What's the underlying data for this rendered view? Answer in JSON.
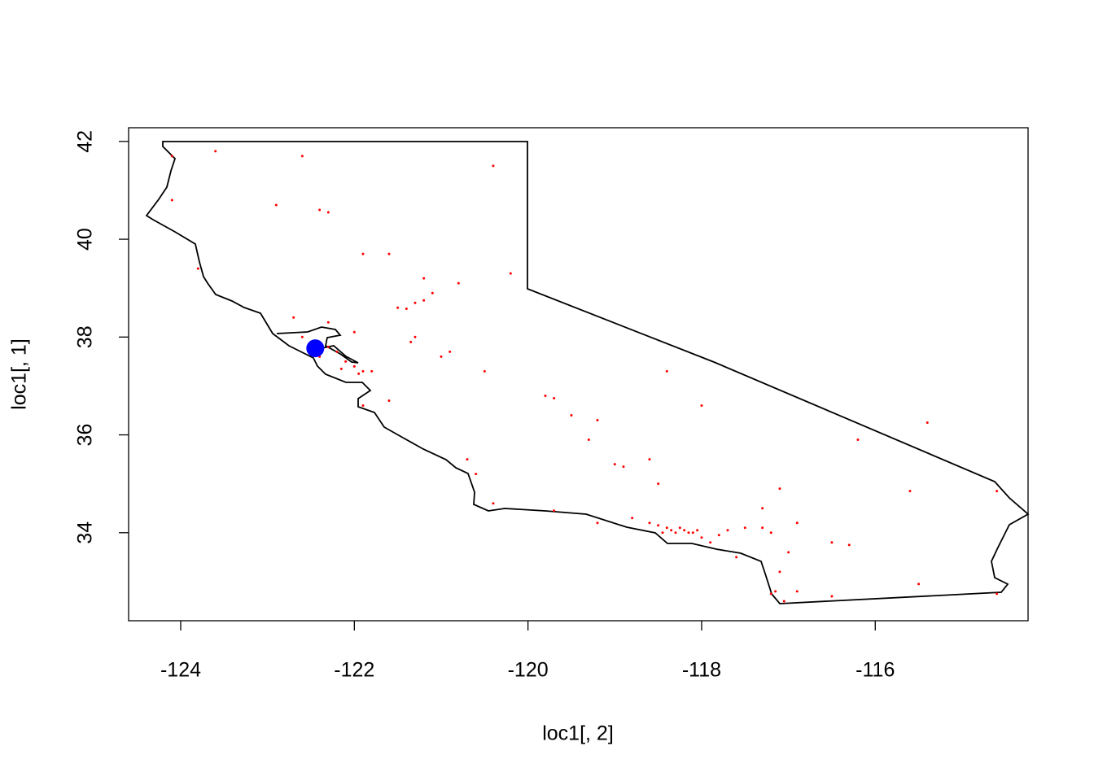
{
  "chart_data": {
    "type": "scatter",
    "xlabel": "loc1[, 2]",
    "ylabel": "loc1[, 1]",
    "xlim": [
      -124.6,
      -114.24
    ],
    "ylim": [
      32.2,
      42.28
    ],
    "xticks": [
      -124,
      -122,
      -120,
      -118,
      -116
    ],
    "yticks": [
      34,
      36,
      38,
      40,
      42
    ],
    "series": [
      {
        "color": "#ff0000",
        "size": 1.5,
        "x": [
          -118.4,
          -118.3,
          -118.2,
          -118.1,
          -118.0,
          -117.9,
          -118.5,
          -118.6,
          -117.7,
          -117.5,
          -117.3,
          -117.2,
          -117.1,
          -117.15,
          -117.2,
          -117.05,
          -116.9,
          -116.5,
          -116.3,
          -117.0,
          -118.35,
          -118.25,
          -118.15,
          -118.45,
          -118.05,
          -117.8,
          -122.3,
          -122.2,
          -122.0,
          -121.9,
          -122.1,
          -122.4,
          -122.6,
          -122.7,
          -122.3,
          -122.0,
          -121.8,
          -122.15,
          -121.95,
          -121.5,
          -121.3,
          -121.2,
          -121.4,
          -120.5,
          -121.0,
          -120.9,
          -119.8,
          -119.7,
          -119.2,
          -119.0,
          -118.9,
          -120.7,
          -120.6,
          -121.9,
          -121.6,
          -124.1,
          -124.1,
          -123.6,
          -122.4,
          -122.3,
          -121.6,
          -121.2,
          -120.2,
          -120.4,
          -122.6,
          -121.9,
          -123.8,
          -122.9,
          -116.2,
          -115.4,
          -115.6,
          -117.1,
          -117.3,
          -114.6,
          -115.5,
          -114.6,
          -116.5,
          -118.0,
          -118.4,
          -118.6,
          -118.5,
          -119.7,
          -120.4,
          -119.2,
          -118.8,
          -116.9,
          -117.6,
          -121.3,
          -121.35,
          -121.1,
          -120.8,
          -119.5,
          -119.3
        ],
        "y": [
          34.1,
          34.0,
          34.05,
          34.0,
          33.9,
          33.8,
          34.15,
          34.2,
          34.05,
          34.1,
          34.1,
          34.0,
          33.2,
          32.8,
          32.75,
          32.6,
          32.8,
          33.8,
          33.75,
          33.6,
          34.05,
          34.1,
          34.0,
          34.0,
          34.05,
          33.95,
          37.8,
          37.7,
          37.4,
          37.3,
          37.5,
          37.6,
          38.0,
          38.4,
          38.3,
          38.1,
          37.3,
          37.35,
          37.25,
          38.6,
          38.7,
          38.75,
          38.58,
          37.3,
          37.6,
          37.7,
          36.8,
          36.75,
          36.3,
          35.4,
          35.35,
          35.5,
          35.2,
          36.6,
          36.7,
          40.8,
          41.7,
          41.8,
          40.6,
          40.55,
          39.7,
          39.2,
          39.3,
          41.5,
          41.7,
          39.7,
          39.4,
          40.7,
          35.9,
          36.25,
          34.85,
          34.9,
          34.5,
          34.85,
          32.95,
          32.75,
          32.7,
          36.6,
          37.3,
          35.5,
          35.0,
          34.45,
          34.6,
          34.2,
          34.3,
          34.2,
          33.5,
          38.0,
          37.9,
          38.9,
          39.1,
          36.4,
          35.9
        ]
      },
      {
        "color": "#0000ff",
        "size": 11,
        "x": [
          -122.45
        ],
        "y": [
          37.77
        ]
      }
    ]
  }
}
